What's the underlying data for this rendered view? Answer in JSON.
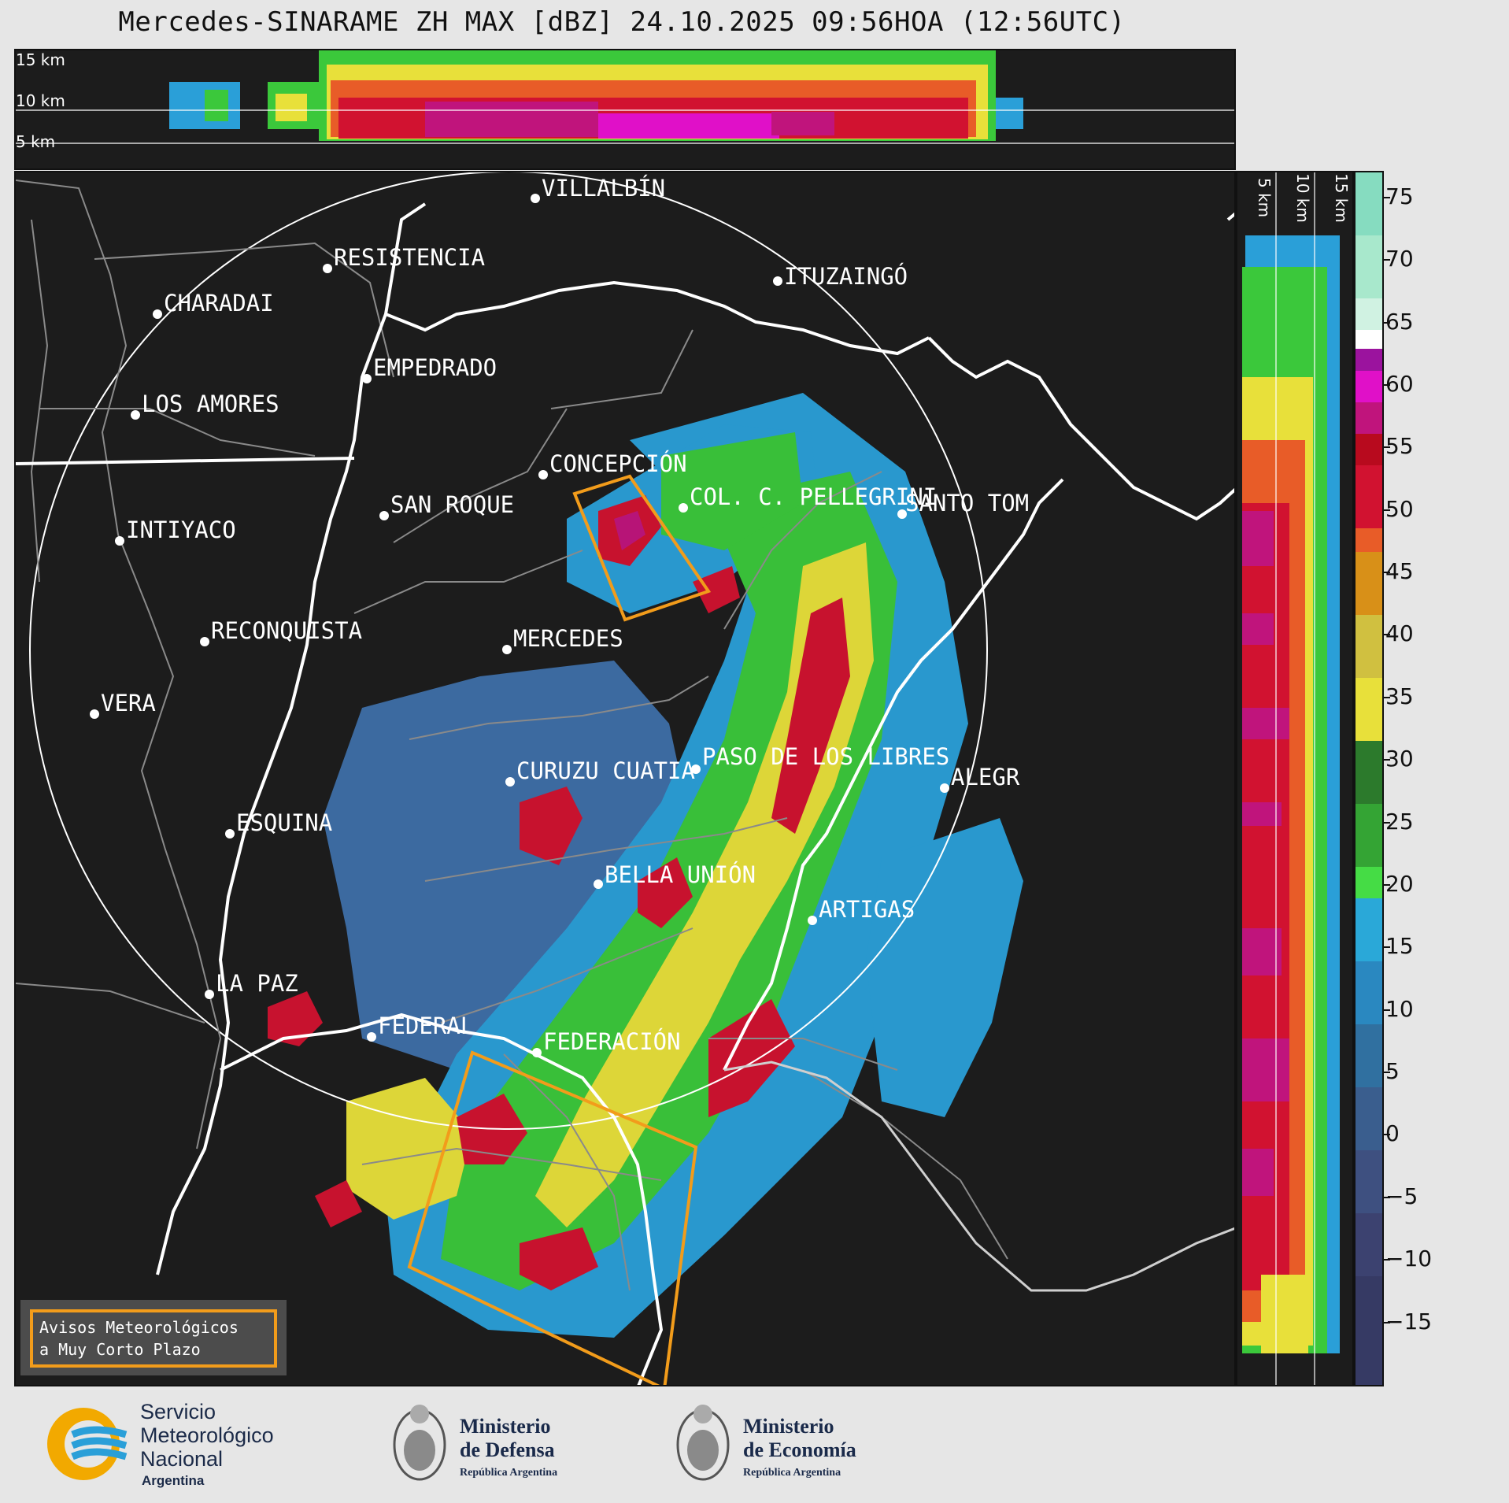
{
  "title": "Mercedes-SINARAME ZH MAX [dBZ] 24.10.2025 09:56HOA (12:56UTC)",
  "altitude_labels_top": [
    "15 km",
    "10 km",
    "5 km"
  ],
  "altitude_labels_right": [
    "5 km",
    "10 km",
    "15 km"
  ],
  "colorbar": {
    "ticks": [
      "75",
      "70",
      "65",
      "60",
      "55",
      "50",
      "45",
      "40",
      "35",
      "30",
      "25",
      "20",
      "15",
      "10",
      "5",
      "0",
      "−5",
      "−10",
      "−15"
    ],
    "range": [
      -20,
      77
    ]
  },
  "cities": [
    {
      "name": "VILLALBÍN"
    },
    {
      "name": "RESISTENCIA"
    },
    {
      "name": "ITUZAINGÓ"
    },
    {
      "name": "CHARADAI"
    },
    {
      "name": "EMPEDRADO"
    },
    {
      "name": "LOS AMORES"
    },
    {
      "name": "CONCEPCIÓN"
    },
    {
      "name": "SAN ROQUE"
    },
    {
      "name": "COL. C. PELLEGRINI"
    },
    {
      "name": "SANTO TOM"
    },
    {
      "name": "INTIYACO"
    },
    {
      "name": "RECONQUISTA"
    },
    {
      "name": "MERCEDES"
    },
    {
      "name": "VERA"
    },
    {
      "name": "PASO DE LOS LIBRES"
    },
    {
      "name": "CURUZU CUATIA"
    },
    {
      "name": "ALEGR"
    },
    {
      "name": "ESQUINA"
    },
    {
      "name": "BELLA UNIÓN"
    },
    {
      "name": "ARTIGAS"
    },
    {
      "name": "LA PAZ"
    },
    {
      "name": "FEDERAL"
    },
    {
      "name": "FEDERACIÓN"
    }
  ],
  "legend": {
    "line1": "Avisos Meteorológicos",
    "line2": "a Muy Corto Plazo"
  },
  "logos": {
    "smn": [
      "Servicio",
      "Meteorológico",
      "Nacional",
      "Argentina"
    ],
    "defensa": [
      "Ministerio",
      "de Defensa",
      "República Argentina"
    ],
    "economia": [
      "Ministerio",
      "de Economía",
      "República Argentina"
    ]
  },
  "colors": {
    "warning_box": "#f29c1b",
    "background": "#1c1c1c",
    "page": "#e6e6e6"
  }
}
